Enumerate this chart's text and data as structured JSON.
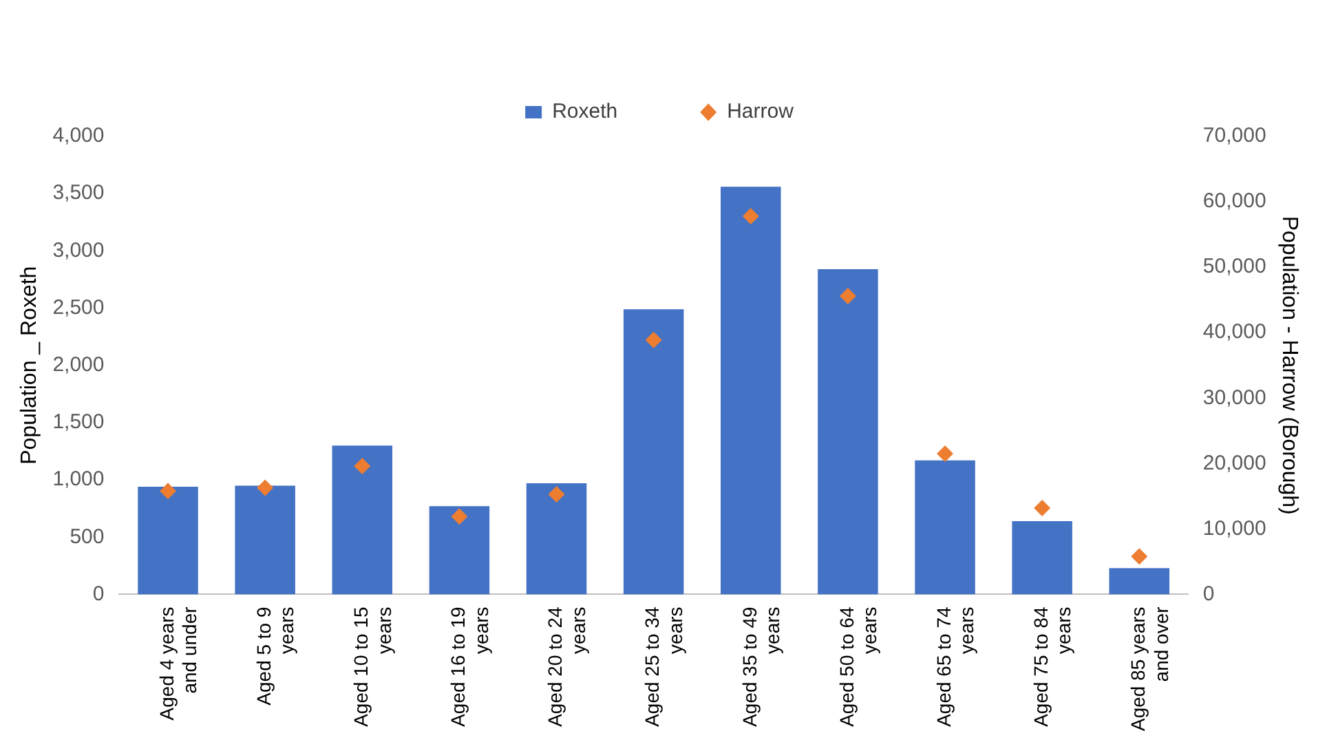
{
  "chart_data": {
    "type": "bar",
    "categories": [
      "Aged 4 years and under",
      "Aged 5 to 9 years",
      "Aged 10 to 15 years",
      "Aged 16 to 19 years",
      "Aged 20 to 24 years",
      "Aged 25 to 34 years",
      "Aged 35 to 49 years",
      "Aged 50 to 64 years",
      "Aged 65 to 74 years",
      "Aged 75 to 84 years",
      "Aged 85 years and over"
    ],
    "series": [
      {
        "name": "Roxeth",
        "color": "#4472c4",
        "values": [
          940,
          950,
          1300,
          770,
          970,
          2490,
          3560,
          2840,
          1170,
          640,
          230
        ]
      },
      {
        "name": "Harrow",
        "type": "scatter",
        "axis": "y2",
        "marker": "diamond",
        "color": "#ed7d31",
        "values": [
          15800,
          16300,
          19600,
          11900,
          15300,
          38900,
          57800,
          45600,
          21500,
          13200,
          5800
        ]
      }
    ],
    "ylabel": "Population _ Roxeth",
    "y2label": "Population - Harrow (Borough)",
    "ylim": [
      0,
      4000
    ],
    "yticks": [
      0,
      500,
      {
        "value": 1000,
        "label": "1,000"
      },
      {
        "value": 1500,
        "label": "1,500"
      },
      {
        "value": 2000,
        "label": "2,000"
      },
      {
        "value": 2500,
        "label": "2,500"
      },
      {
        "value": 3000,
        "label": "3,000"
      },
      {
        "value": 3500,
        "label": "3,500"
      },
      {
        "value": 4000,
        "label": "4,000"
      }
    ],
    "y2lim": [
      0,
      70000
    ],
    "y2ticks": [
      0,
      {
        "value": 10000,
        "label": "10,000"
      },
      {
        "value": 20000,
        "label": "20,000"
      },
      {
        "value": 30000,
        "label": "30,000"
      },
      {
        "value": 40000,
        "label": "40,000"
      },
      {
        "value": 50000,
        "label": "50,000"
      },
      {
        "value": 60000,
        "label": "60,000"
      },
      {
        "value": 70000,
        "label": "70,000"
      }
    ],
    "legend": "top",
    "grid": false
  }
}
